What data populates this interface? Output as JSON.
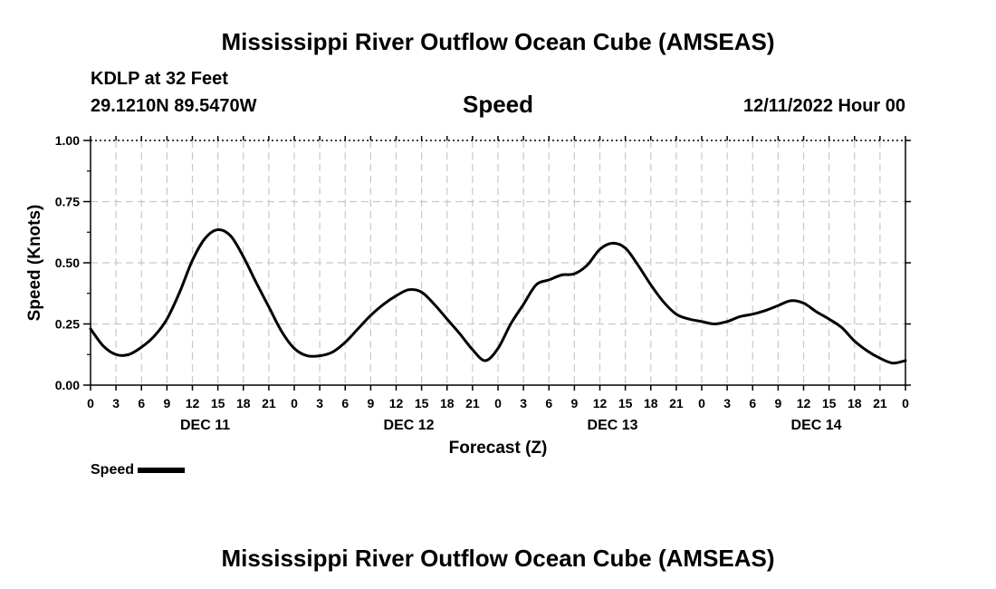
{
  "header": {
    "title": "Mississippi River Outflow Ocean Cube (AMSEAS)",
    "station": "KDLP at 32 Feet",
    "coords": "29.1210N  89.5470W",
    "parameter": "Speed",
    "datetime": "12/11/2022 Hour 00"
  },
  "legend": {
    "label": "Speed"
  },
  "footer": {
    "title": "Mississippi River Outflow Ocean Cube (AMSEAS)"
  },
  "chart_data": {
    "type": "line",
    "title": "Speed",
    "xlabel": "Forecast (Z)",
    "ylabel": "Speed (Knots)",
    "ylim": [
      0,
      1.0
    ],
    "xlim": [
      0,
      96
    ],
    "grid": true,
    "legend_position": "bottom-left",
    "yticks": [
      0,
      0.25,
      0.5,
      0.75,
      1.0
    ],
    "ytick_labels": [
      "0.00",
      "0.25",
      "0.50",
      "0.75",
      "1.00"
    ],
    "xtick_hours": [
      0,
      3,
      6,
      9,
      12,
      15,
      18,
      21,
      24,
      27,
      30,
      33,
      36,
      39,
      42,
      45,
      48,
      51,
      54,
      57,
      60,
      63,
      66,
      69,
      72,
      75,
      78,
      81,
      84,
      87,
      90,
      93,
      96
    ],
    "xtick_labels": [
      "0",
      "3",
      "6",
      "9",
      "12",
      "15",
      "18",
      "21",
      "0",
      "3",
      "6",
      "9",
      "12",
      "15",
      "18",
      "21",
      "0",
      "3",
      "6",
      "9",
      "12",
      "15",
      "18",
      "21",
      "0",
      "3",
      "6",
      "9",
      "12",
      "15",
      "18",
      "21",
      "0"
    ],
    "day_labels": [
      {
        "hour": 13.5,
        "label": "DEC 11"
      },
      {
        "hour": 37.5,
        "label": "DEC 12"
      },
      {
        "hour": 61.5,
        "label": "DEC 13"
      },
      {
        "hour": 85.5,
        "label": "DEC 14"
      }
    ],
    "series": [
      {
        "name": "Speed",
        "color": "#000000",
        "x": [
          0,
          1.5,
          3,
          4.5,
          6,
          7.5,
          9,
          10.5,
          12,
          13.5,
          15,
          16.5,
          18,
          19.5,
          21,
          22.5,
          24,
          25.5,
          27,
          28.5,
          30,
          31.5,
          33,
          34.5,
          36,
          37.5,
          39,
          40.5,
          42,
          43.5,
          45,
          46.5,
          48,
          49.5,
          51,
          52.5,
          54,
          55.5,
          57,
          58.5,
          60,
          61.5,
          63,
          64.5,
          66,
          67.5,
          69,
          70.5,
          72,
          73.5,
          75,
          76.5,
          78,
          79.5,
          81,
          82.5,
          84,
          85.5,
          87,
          88.5,
          90,
          91.5,
          93,
          94.5,
          96
        ],
        "values": [
          0.23,
          0.16,
          0.125,
          0.125,
          0.155,
          0.2,
          0.27,
          0.38,
          0.51,
          0.6,
          0.635,
          0.61,
          0.525,
          0.42,
          0.32,
          0.22,
          0.15,
          0.12,
          0.12,
          0.135,
          0.175,
          0.23,
          0.285,
          0.33,
          0.365,
          0.39,
          0.38,
          0.33,
          0.27,
          0.21,
          0.145,
          0.1,
          0.15,
          0.25,
          0.33,
          0.41,
          0.43,
          0.45,
          0.455,
          0.49,
          0.555,
          0.58,
          0.56,
          0.49,
          0.41,
          0.34,
          0.29,
          0.27,
          0.26,
          0.25,
          0.26,
          0.28,
          0.29,
          0.305,
          0.325,
          0.345,
          0.335,
          0.3,
          0.27,
          0.235,
          0.18,
          0.14,
          0.11,
          0.09,
          0.1
        ]
      }
    ]
  }
}
